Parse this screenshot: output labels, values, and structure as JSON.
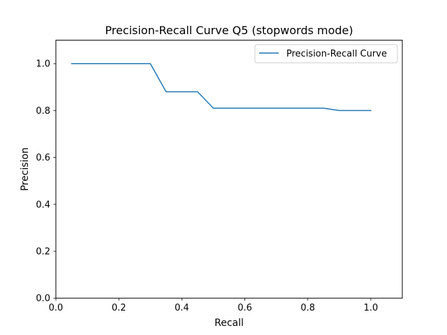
{
  "chart_data": {
    "type": "line",
    "title": "Precision-Recall Curve Q5 (stopwords mode)",
    "xlabel": "Recall",
    "ylabel": "Precision",
    "xlim": [
      0.0,
      1.1
    ],
    "ylim": [
      0.0,
      1.1
    ],
    "xticks": [
      0.0,
      0.2,
      0.4,
      0.6,
      0.8,
      1.0
    ],
    "yticks": [
      0.0,
      0.2,
      0.4,
      0.6,
      0.8,
      1.0
    ],
    "xtick_labels": [
      "0.0",
      "0.2",
      "0.4",
      "0.6",
      "0.8",
      "1.0"
    ],
    "ytick_labels": [
      "0.0",
      "0.2",
      "0.4",
      "0.6",
      "0.8",
      "1.0"
    ],
    "grid": false,
    "legend_position": "top-right",
    "series": [
      {
        "name": "Precision-Recall Curve",
        "color": "#1f77b4",
        "x": [
          0.05,
          0.1,
          0.15,
          0.2,
          0.25,
          0.3,
          0.35,
          0.4,
          0.45,
          0.5,
          0.55,
          0.6,
          0.65,
          0.7,
          0.75,
          0.8,
          0.85,
          0.9,
          0.95,
          1.0
        ],
        "y": [
          1.0,
          1.0,
          1.0,
          1.0,
          1.0,
          1.0,
          0.88,
          0.88,
          0.88,
          0.81,
          0.81,
          0.81,
          0.81,
          0.81,
          0.81,
          0.81,
          0.81,
          0.8,
          0.8,
          0.8
        ]
      }
    ]
  }
}
